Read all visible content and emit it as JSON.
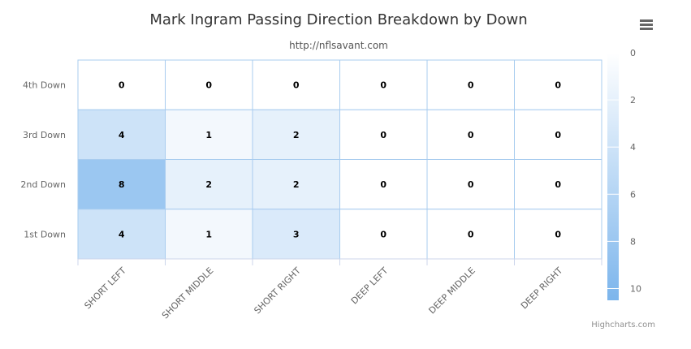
{
  "chart_data": {
    "type": "heatmap",
    "title": "Mark Ingram Passing Direction Breakdown by Down",
    "subtitle": "http://nflsavant.com",
    "x_categories": [
      "SHORT LEFT",
      "SHORT MIDDLE",
      "SHORT RIGHT",
      "DEEP LEFT",
      "DEEP MIDDLE",
      "DEEP RIGHT"
    ],
    "y_categories": [
      "4th Down",
      "3rd Down",
      "2nd Down",
      "1st Down"
    ],
    "values": [
      [
        0,
        0,
        0,
        0,
        0,
        0
      ],
      [
        4,
        1,
        2,
        0,
        0,
        0
      ],
      [
        8,
        2,
        2,
        0,
        0,
        0
      ],
      [
        4,
        1,
        3,
        0,
        0,
        0
      ]
    ],
    "color_axis": {
      "min": 0,
      "max": 10.5,
      "min_color": "#ffffff",
      "max_color": "#7cb5ec",
      "ticks": [
        0,
        2,
        4,
        6,
        8,
        10
      ],
      "placement": "right"
    },
    "grid": true
  },
  "ui": {
    "menu_icon": "hamburger-menu-icon",
    "credits": "Highcharts.com"
  },
  "colors": {
    "cell_border": "#a8ccef",
    "label_text": "#333333",
    "value_text": "#000000"
  }
}
